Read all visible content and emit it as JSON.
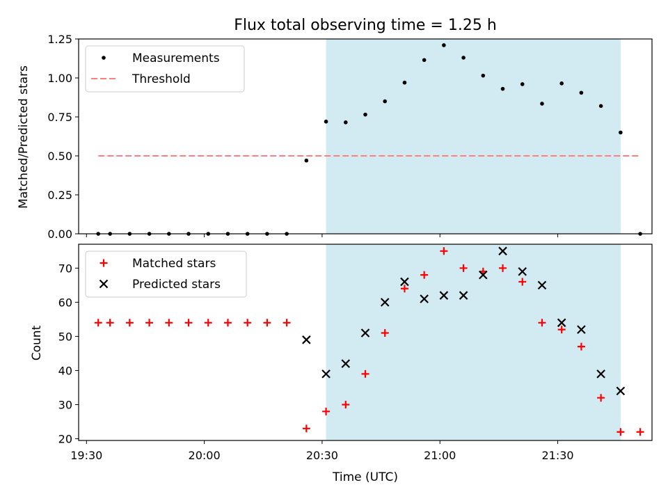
{
  "title": "Flux total observing time = 1.25 h",
  "colors": {
    "window": "#add8e6",
    "measurement": "#000000",
    "threshold": "#ff7f7f",
    "matched": "#ff0000",
    "predicted": "#000000"
  },
  "chart_data": [
    {
      "type": "scatter",
      "ylabel": "Matched/Predicted stars",
      "ylim": [
        0,
        1.25
      ],
      "yticks": [
        0,
        0.25,
        0.5,
        0.75,
        1.0,
        1.25
      ],
      "ytick_labels": [
        "0.00",
        "0.25",
        "0.50",
        "0.75",
        "1.00",
        "1.25"
      ],
      "xlim": [
        "19:28",
        "21:54"
      ],
      "shaded_interval": [
        "20:31",
        "21:46"
      ],
      "legend_placement": "top-left",
      "series": [
        {
          "name": "Measurements",
          "marker": "dot",
          "x": [
            "19:33",
            "19:36",
            "19:41",
            "19:46",
            "19:51",
            "19:56",
            "20:01",
            "20:06",
            "20:11",
            "20:16",
            "20:21",
            "20:26",
            "20:31",
            "20:36",
            "20:41",
            "20:46",
            "20:51",
            "20:56",
            "21:01",
            "21:06",
            "21:11",
            "21:16",
            "21:21",
            "21:26",
            "21:31",
            "21:36",
            "21:41",
            "21:46",
            "21:51"
          ],
          "y": [
            0,
            0,
            0,
            0,
            0,
            0,
            0,
            0,
            0,
            0,
            0,
            0.47,
            0.72,
            0.715,
            0.765,
            0.85,
            0.97,
            1.115,
            1.21,
            1.13,
            1.015,
            0.93,
            0.96,
            0.835,
            0.965,
            0.905,
            0.82,
            0.65,
            0
          ]
        },
        {
          "name": "Threshold",
          "marker": "dashed-line",
          "x": [
            "19:33",
            "21:51"
          ],
          "y": [
            0.5,
            0.5
          ]
        }
      ]
    },
    {
      "type": "scatter",
      "xlabel": "Time (UTC)",
      "ylabel": "Count",
      "ylim": [
        19.5,
        77
      ],
      "yticks": [
        20,
        30,
        40,
        50,
        60,
        70
      ],
      "ytick_labels": [
        "20",
        "30",
        "40",
        "50",
        "60",
        "70"
      ],
      "xlim": [
        "19:28",
        "21:54"
      ],
      "xticks": [
        "19:30",
        "20:00",
        "20:30",
        "21:00",
        "21:30"
      ],
      "shaded_interval": [
        "20:31",
        "21:46"
      ],
      "legend_placement": "top-left",
      "series": [
        {
          "name": "Matched stars",
          "marker": "plus",
          "x": [
            "19:33",
            "19:36",
            "19:41",
            "19:46",
            "19:51",
            "19:56",
            "20:01",
            "20:06",
            "20:11",
            "20:16",
            "20:21",
            "20:26",
            "20:31",
            "20:36",
            "20:41",
            "20:46",
            "20:51",
            "20:56",
            "21:01",
            "21:06",
            "21:11",
            "21:16",
            "21:21",
            "21:26",
            "21:31",
            "21:36",
            "21:41",
            "21:46",
            "21:51"
          ],
          "y": [
            54,
            54,
            54,
            54,
            54,
            54,
            54,
            54,
            54,
            54,
            54,
            23,
            28,
            30,
            39,
            51,
            64,
            68,
            75,
            70,
            69,
            70,
            66,
            54,
            52,
            47,
            32,
            22,
            22
          ]
        },
        {
          "name": "Predicted stars",
          "marker": "x",
          "x": [
            "20:26",
            "20:31",
            "20:36",
            "20:41",
            "20:46",
            "20:51",
            "20:56",
            "21:01",
            "21:06",
            "21:11",
            "21:16",
            "21:21",
            "21:26",
            "21:31",
            "21:36",
            "21:41",
            "21:46"
          ],
          "y": [
            49,
            39,
            42,
            51,
            60,
            66,
            61,
            62,
            62,
            68,
            75,
            69,
            65,
            54,
            52,
            39,
            34
          ]
        }
      ]
    }
  ]
}
